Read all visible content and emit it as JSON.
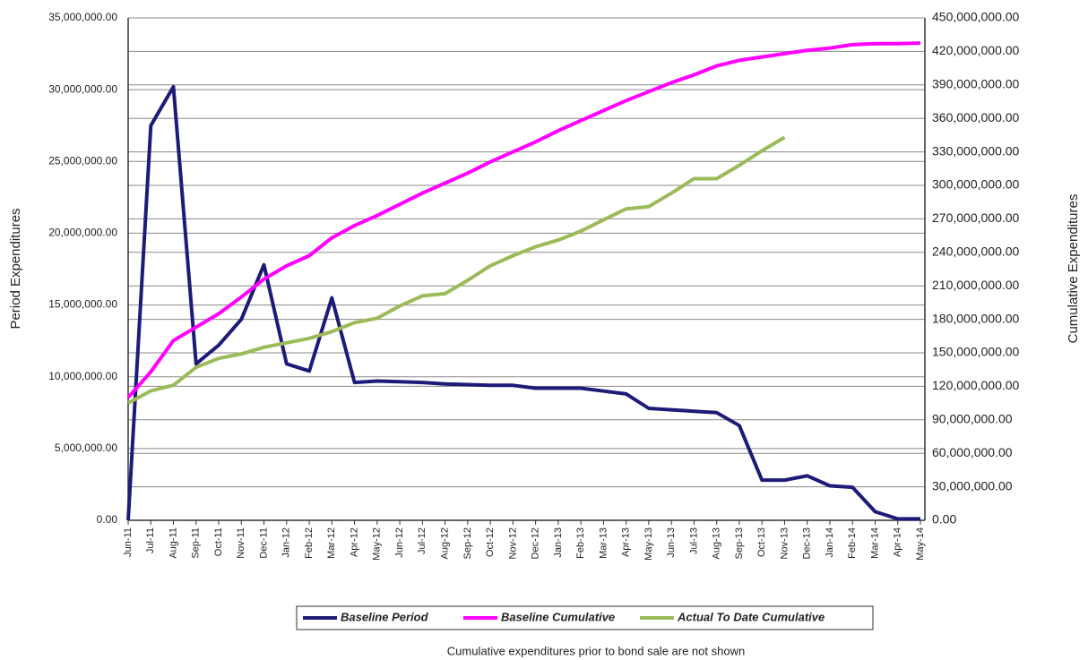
{
  "chart_data": {
    "type": "line",
    "y_label": "Period Expenditures",
    "y2_label": "Cumulative Expenditures",
    "note": "Cumulative expenditures prior to bond sale are not shown",
    "categories": [
      "Jun-11",
      "Jul-11",
      "Aug-11",
      "Sep-11",
      "Oct-11",
      "Nov-11",
      "Dec-11",
      "Jan-12",
      "Feb-12",
      "Mar-12",
      "Apr-12",
      "May-12",
      "Jun-12",
      "Jul-12",
      "Aug-12",
      "Sep-12",
      "Oct-12",
      "Nov-12",
      "Dec-12",
      "Jan-13",
      "Feb-13",
      "Mar-13",
      "Apr-13",
      "May-13",
      "Jun-13",
      "Jul-13",
      "Aug-13",
      "Sep-13",
      "Oct-13",
      "Nov-13",
      "Dec-13",
      "Jan-14",
      "Feb-14",
      "Mar-14",
      "Apr-14",
      "May-14"
    ],
    "series": [
      {
        "name": "Baseline Period",
        "color": "#1c1c78",
        "axis": "y",
        "values": [
          0,
          27500000,
          30200000,
          10900000,
          12200000,
          14000000,
          17800000,
          10900000,
          10400000,
          15500000,
          9600000,
          9700000,
          9650000,
          9600000,
          9500000,
          9450000,
          9400000,
          9400000,
          9200000,
          9200000,
          9200000,
          9000000,
          8800000,
          7800000,
          7700000,
          7600000,
          7500000,
          6600000,
          2800000,
          2800000,
          3100000,
          2400000,
          2300000,
          600000,
          100000,
          100000
        ]
      },
      {
        "name": "Baseline Cumulative",
        "color": "#ff00ff",
        "axis": "y2",
        "values": [
          110000000,
          133000000,
          161000000,
          173000000,
          185000000,
          200000000,
          216000000,
          228000000,
          237000000,
          253000000,
          264000000,
          273000000,
          283000000,
          293000000,
          302000000,
          311000000,
          321000000,
          330000000,
          339000000,
          349000000,
          358000000,
          367000000,
          376000000,
          384000000,
          392000000,
          399000000,
          407000000,
          412000000,
          415000000,
          418000000,
          421000000,
          423000000,
          426000000,
          427000000,
          427000000,
          427500000
        ]
      },
      {
        "name": "Actual To Date Cumulative",
        "color": "#9bbb59",
        "axis": "y2",
        "values": [
          105000000,
          116000000,
          121000000,
          137000000,
          145000000,
          149000000,
          155000000,
          159000000,
          163000000,
          169000000,
          177000000,
          181000000,
          192000000,
          201000000,
          203000000,
          215000000,
          228000000,
          237000000,
          245000000,
          251000000,
          259000000,
          269000000,
          279000000,
          281000000,
          293000000,
          306000000,
          306000000,
          318000000,
          331000000,
          343000000,
          null,
          null,
          null,
          null,
          null,
          null
        ]
      }
    ],
    "ylim": [
      0,
      35000000
    ],
    "yticks": [
      {
        "value": 0,
        "label": "0.00"
      },
      {
        "value": 5000000,
        "label": "5,000,000.00"
      },
      {
        "value": 10000000,
        "label": "10,000,000.00"
      },
      {
        "value": 15000000,
        "label": "15,000,000.00"
      },
      {
        "value": 20000000,
        "label": "20,000,000.00"
      },
      {
        "value": 25000000,
        "label": "25,000,000.00"
      },
      {
        "value": 30000000,
        "label": "30,000,000.00"
      },
      {
        "value": 35000000,
        "label": "35,000,000.00"
      }
    ],
    "y2lim": [
      0,
      450000000
    ],
    "y2ticks": [
      {
        "value": 0,
        "label": "0.00"
      },
      {
        "value": 30000000,
        "label": "30,000,000.00"
      },
      {
        "value": 60000000,
        "label": "60,000,000.00"
      },
      {
        "value": 90000000,
        "label": "90,000,000.00"
      },
      {
        "value": 120000000,
        "label": "120,000,000.00"
      },
      {
        "value": 150000000,
        "label": "150,000,000.00"
      },
      {
        "value": 180000000,
        "label": "180,000,000.00"
      },
      {
        "value": 210000000,
        "label": "210,000,000.00"
      },
      {
        "value": 240000000,
        "label": "240,000,000.00"
      },
      {
        "value": 270000000,
        "label": "270,000,000.00"
      },
      {
        "value": 300000000,
        "label": "300,000,000.00"
      },
      {
        "value": 330000000,
        "label": "330,000,000.00"
      },
      {
        "value": 360000000,
        "label": "360,000,000.00"
      },
      {
        "value": 390000000,
        "label": "390,000,000.00"
      },
      {
        "value": 420000000,
        "label": "420,000,000.00"
      },
      {
        "value": 450000000,
        "label": "450,000,000.00"
      }
    ],
    "grid": true
  }
}
